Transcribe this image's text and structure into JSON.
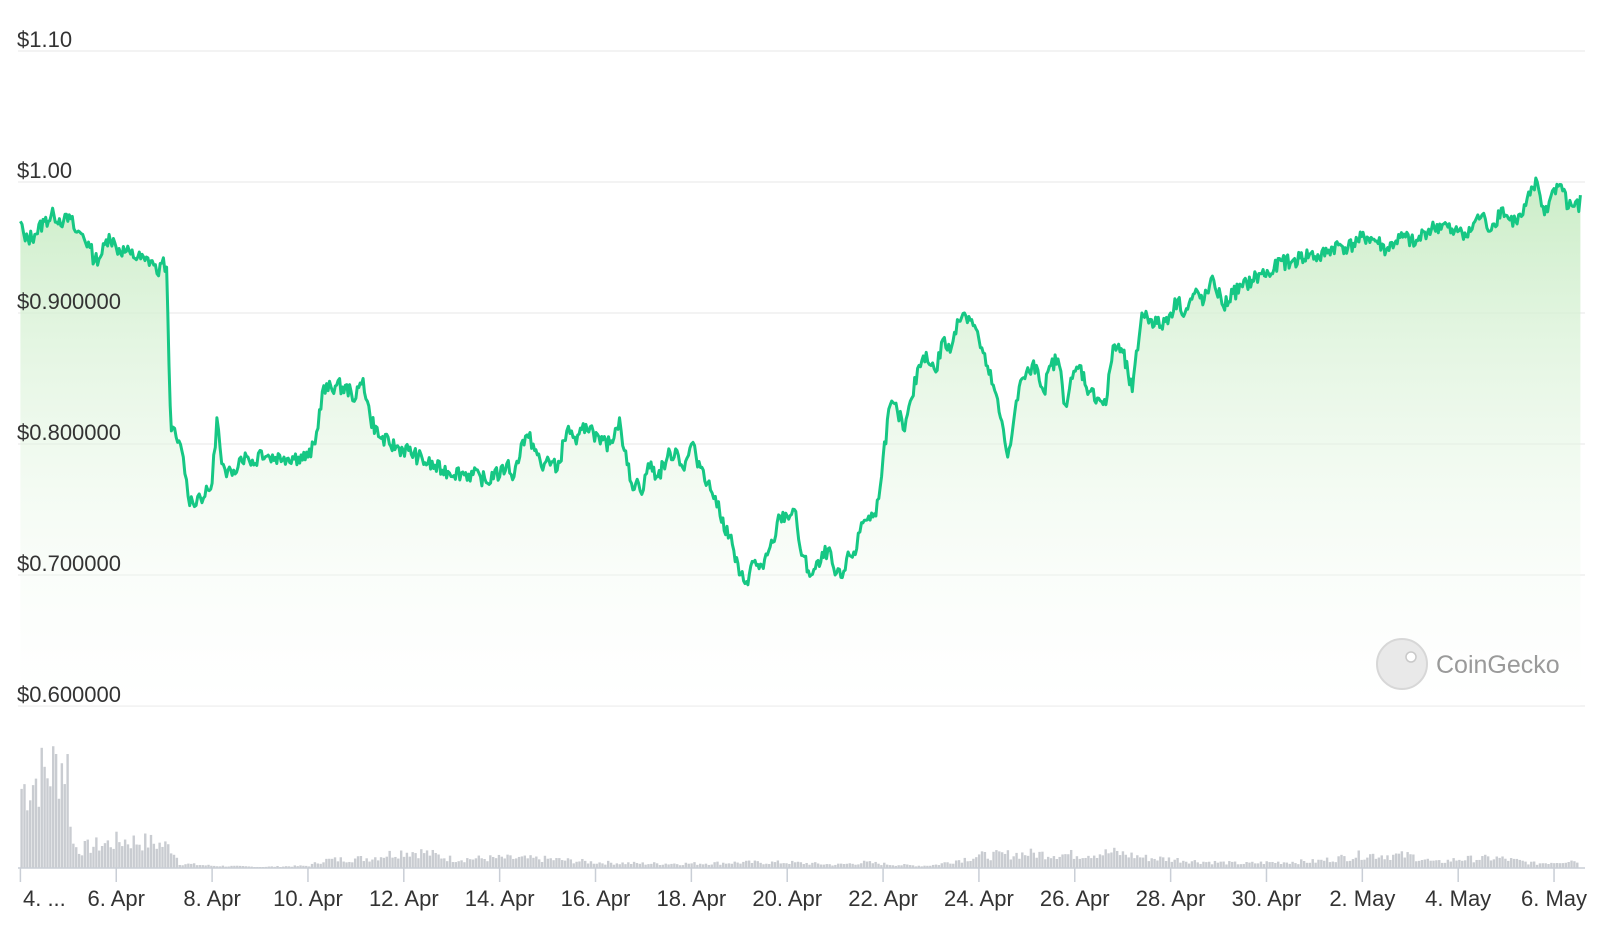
{
  "chart_data": {
    "type": "area",
    "y_tick_labels": [
      "$1.10",
      "$1.00",
      "$0.900000",
      "$0.800000",
      "$0.700000",
      "$0.600000"
    ],
    "y_tick_values": [
      1.1,
      1.0,
      0.9,
      0.8,
      0.7,
      0.6
    ],
    "ylim": [
      0.6,
      1.1
    ],
    "x_tick_labels": [
      "4. ...",
      "6. Apr",
      "8. Apr",
      "10. Apr",
      "12. Apr",
      "14. Apr",
      "16. Apr",
      "18. Apr",
      "20. Apr",
      "22. Apr",
      "24. Apr",
      "26. Apr",
      "28. Apr",
      "30. Apr",
      "2. May",
      "4. May",
      "6. May"
    ],
    "x_tick_days": [
      0,
      2,
      4,
      6,
      8,
      10,
      12,
      14,
      16,
      18,
      20,
      22,
      24,
      26,
      28,
      30,
      32
    ],
    "xlim_days": [
      -0.05,
      32.5
    ],
    "grid": true,
    "line_color": "#16c784",
    "fill_color_top": "#c8ecc4",
    "volume_color": "#c9ccd1",
    "price_series": {
      "x_days": [
        0,
        0.1,
        0.3,
        0.5,
        0.7,
        0.9,
        1.05,
        1.15,
        1.3,
        1.45,
        1.55,
        1.7,
        1.85,
        2.0,
        2.3,
        2.6,
        2.75,
        2.85,
        2.95,
        3.05,
        3.1,
        3.15,
        3.25,
        3.4,
        3.5,
        3.6,
        3.7,
        3.85,
        4.0,
        4.1,
        4.2,
        4.3,
        4.45,
        4.6,
        4.75,
        4.9,
        5.0,
        5.2,
        5.5,
        5.8,
        6.0,
        6.15,
        6.3,
        6.6,
        6.9,
        7.0,
        7.15,
        7.3,
        7.5,
        7.7,
        7.9,
        8.1,
        8.3,
        8.5,
        8.8,
        9.2,
        9.6,
        9.75,
        9.9,
        10.0,
        10.15,
        10.3,
        10.45,
        10.6,
        10.7,
        10.9,
        11.0,
        11.2,
        11.4,
        11.5,
        11.6,
        11.8,
        11.95,
        12.1,
        12.3,
        12.5,
        12.6,
        12.75,
        12.9,
        13.0,
        13.1,
        13.3,
        13.5,
        13.7,
        13.85,
        14.0,
        14.1,
        14.25,
        14.4,
        14.5,
        14.6,
        14.8,
        15.0,
        15.15,
        15.3,
        15.5,
        15.7,
        15.85,
        16.0,
        16.15,
        16.3,
        16.5,
        16.7,
        16.85,
        17.0,
        17.15,
        17.3,
        17.45,
        17.55,
        17.7,
        17.85,
        18.0,
        18.15,
        18.3,
        18.45,
        18.6,
        18.75,
        18.9,
        19.0,
        19.1,
        19.25,
        19.4,
        19.55,
        19.7,
        19.85,
        20.0,
        20.15,
        20.3,
        20.45,
        20.6,
        20.75,
        20.9,
        21.05,
        21.2,
        21.35,
        21.5,
        21.65,
        21.8,
        21.95,
        22.1,
        22.3,
        22.5,
        22.65,
        22.8,
        23.0,
        23.2,
        23.4,
        23.6,
        23.8,
        24.0,
        24.15,
        24.3,
        24.5,
        24.7,
        24.9,
        25.1,
        25.3,
        25.5,
        25.7,
        25.9,
        26.1,
        26.3,
        26.5,
        26.7,
        26.9,
        27.1,
        27.3,
        27.5,
        27.7,
        27.9,
        28.1,
        28.3,
        28.5,
        28.7,
        28.9,
        29.1,
        29.3,
        29.5,
        29.7,
        29.9,
        30.05,
        30.2,
        30.35,
        30.5,
        30.6,
        30.75,
        30.9,
        31.05,
        31.2,
        31.35,
        31.5,
        31.65,
        31.8,
        31.9,
        32.0,
        32.15,
        32.3,
        32.45,
        32.55
      ],
      "prices": [
        0.97,
        0.955,
        0.96,
        0.97,
        0.975,
        0.97,
        0.972,
        0.962,
        0.96,
        0.95,
        0.94,
        0.945,
        0.96,
        0.95,
        0.945,
        0.94,
        0.94,
        0.93,
        0.938,
        0.935,
        0.86,
        0.81,
        0.805,
        0.79,
        0.76,
        0.755,
        0.76,
        0.76,
        0.77,
        0.82,
        0.785,
        0.775,
        0.78,
        0.79,
        0.79,
        0.785,
        0.795,
        0.79,
        0.79,
        0.79,
        0.79,
        0.8,
        0.84,
        0.845,
        0.84,
        0.835,
        0.85,
        0.82,
        0.805,
        0.8,
        0.797,
        0.795,
        0.79,
        0.785,
        0.78,
        0.778,
        0.775,
        0.77,
        0.78,
        0.775,
        0.785,
        0.775,
        0.8,
        0.805,
        0.8,
        0.78,
        0.79,
        0.78,
        0.81,
        0.81,
        0.8,
        0.815,
        0.81,
        0.8,
        0.8,
        0.82,
        0.795,
        0.77,
        0.77,
        0.765,
        0.785,
        0.775,
        0.79,
        0.795,
        0.78,
        0.8,
        0.79,
        0.78,
        0.765,
        0.76,
        0.745,
        0.73,
        0.7,
        0.695,
        0.71,
        0.705,
        0.725,
        0.745,
        0.745,
        0.75,
        0.715,
        0.7,
        0.71,
        0.72,
        0.7,
        0.698,
        0.715,
        0.72,
        0.74,
        0.745,
        0.745,
        0.79,
        0.83,
        0.825,
        0.81,
        0.835,
        0.86,
        0.87,
        0.86,
        0.855,
        0.88,
        0.87,
        0.895,
        0.9,
        0.895,
        0.88,
        0.86,
        0.845,
        0.82,
        0.79,
        0.825,
        0.85,
        0.855,
        0.86,
        0.84,
        0.86,
        0.865,
        0.83,
        0.85,
        0.86,
        0.84,
        0.835,
        0.83,
        0.875,
        0.87,
        0.84,
        0.9,
        0.895,
        0.89,
        0.9,
        0.91,
        0.9,
        0.915,
        0.91,
        0.925,
        0.905,
        0.915,
        0.92,
        0.925,
        0.93,
        0.93,
        0.94,
        0.938,
        0.942,
        0.945,
        0.942,
        0.948,
        0.952,
        0.95,
        0.955,
        0.958,
        0.955,
        0.948,
        0.955,
        0.958,
        0.952,
        0.962,
        0.965,
        0.968,
        0.96,
        0.965,
        0.958,
        0.97,
        0.975,
        0.965,
        0.968,
        0.98,
        0.972,
        0.97,
        0.975,
        0.99,
        1.0,
        0.975,
        0.985,
        0.995,
        0.998,
        0.98,
        0.985,
        0.975,
        0.99
      ]
    },
    "volume_series": {
      "x_days": [
        0.05,
        0.35,
        0.65,
        0.85,
        0.95,
        1.0,
        1.05,
        1.2,
        1.5,
        1.8,
        2.1,
        2.4,
        2.7,
        3.0,
        3.15,
        3.3,
        4.0,
        5.0,
        6.0,
        6.3,
        6.8,
        7.3,
        7.6,
        8.0,
        8.4,
        9.0,
        10.0,
        11.0,
        12.0,
        13.0,
        14.0,
        15.0,
        16.0,
        17.0,
        17.6,
        18.2,
        18.8,
        19.1,
        19.4,
        20.0,
        21.0,
        22.0,
        22.8,
        23.5,
        24.0,
        24.5,
        25.0,
        25.5,
        26.0,
        27.0,
        28.0,
        29.0,
        29.5,
        30.0,
        30.8,
        31.6,
        32.4
      ],
      "volume_pct": [
        72,
        82,
        90,
        95,
        96,
        70,
        22,
        17,
        20,
        22,
        25,
        24,
        23,
        20,
        18,
        4,
        2,
        1,
        2,
        7,
        8,
        9,
        12,
        15,
        14,
        8,
        9,
        8,
        5,
        4,
        4,
        5,
        5,
        3,
        5,
        3,
        2,
        3,
        6,
        11,
        13,
        12,
        14,
        9,
        8,
        6,
        5,
        4,
        5,
        6,
        12,
        11,
        5,
        8,
        9,
        4,
        7
      ]
    }
  }
}
